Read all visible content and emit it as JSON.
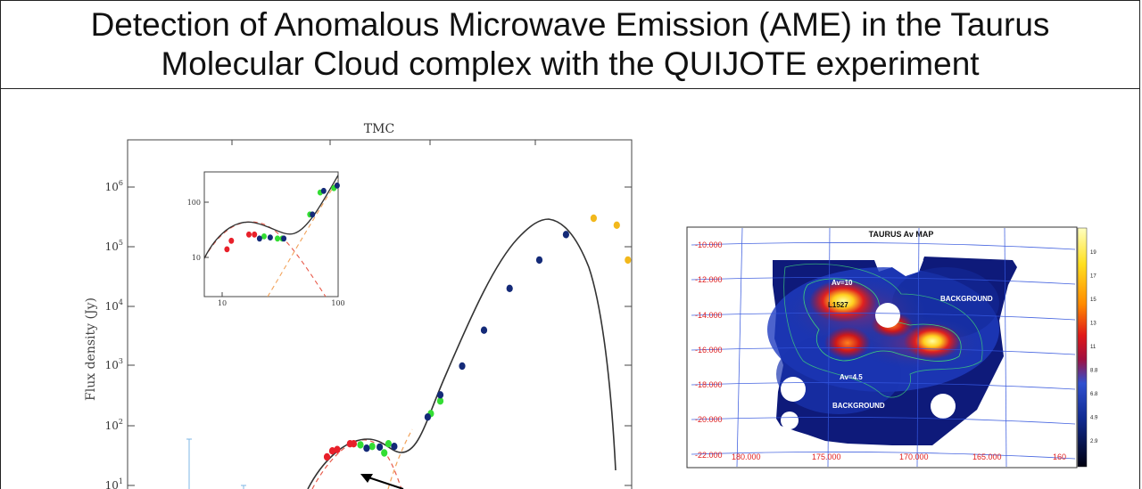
{
  "page": {
    "title_line1": "Detection of Anomalous Microwave Emission (AME) in the Taurus",
    "title_line2": "Molecular Cloud complex with the QUIJOTE experiment"
  },
  "chart_data": [
    {
      "type": "scatter",
      "title": "TMC",
      "xlabel": "",
      "ylabel": "Flux density (Jy)",
      "yscale": "log",
      "y_tick_labels": [
        "10^1",
        "10^2",
        "10^3",
        "10^4",
        "10^5",
        "10^6"
      ],
      "series": [
        {
          "color": "#e8202a",
          "points": [
            [
              11,
              30
            ],
            [
              12,
              38
            ],
            [
              13,
              40
            ],
            [
              16,
              50
            ],
            [
              17,
              50
            ]
          ]
        },
        {
          "color": "#33dd33",
          "points": [
            [
              19,
              48
            ],
            [
              23,
              45
            ],
            [
              28,
              35
            ],
            [
              30,
              50
            ],
            [
              60,
              160
            ],
            [
              70,
              260
            ]
          ]
        },
        {
          "color": "#142a78",
          "points": [
            [
              21,
              42
            ],
            [
              26,
              44
            ],
            [
              33,
              45
            ],
            [
              57,
              140
            ],
            [
              70,
              330
            ],
            [
              100,
              1000
            ],
            [
              143,
              4000
            ],
            [
              217,
              20000
            ],
            [
              353,
              60000
            ],
            [
              545,
              160000
            ]
          ]
        },
        {
          "color": "#f2b81c",
          "points": [
            [
              857,
              300000
            ],
            [
              1250,
              230000
            ],
            [
              1500,
              60000
            ]
          ]
        }
      ],
      "legend": "none",
      "grid": false
    },
    {
      "type": "scatter",
      "title": "",
      "xscale": "log",
      "yscale": "log",
      "x_tick_labels": [
        "10",
        "100"
      ],
      "y_tick_labels": [
        "10",
        "100"
      ],
      "xlim": [
        7,
        100
      ],
      "ylim": [
        3,
        200
      ],
      "series": [
        {
          "color": "#e8202a",
          "points": [
            [
              11,
              14
            ],
            [
              12,
              20
            ],
            [
              17,
              26
            ],
            [
              19,
              26
            ]
          ]
        },
        {
          "color": "#33dd33",
          "points": [
            [
              23,
              24
            ],
            [
              30,
              22
            ],
            [
              33,
              22
            ],
            [
              57,
              60
            ],
            [
              70,
              150
            ],
            [
              92,
              180
            ]
          ]
        },
        {
          "color": "#142a78",
          "points": [
            [
              21,
              22
            ],
            [
              26,
              23
            ],
            [
              34,
              22
            ],
            [
              60,
              60
            ],
            [
              75,
              160
            ],
            [
              98,
              200
            ]
          ]
        }
      ]
    },
    {
      "type": "heatmap",
      "title": "TAURUS Av MAP",
      "y_tick_labels": [
        "-10.000",
        "-12.000",
        "-14.000",
        "-16.000",
        "-18.000",
        "-20.000",
        "-22.000"
      ],
      "x_tick_labels": [
        "180.000",
        "175.000",
        "170.000",
        "165.000",
        "160"
      ],
      "colorbar_ticks": [
        "19",
        "17",
        "15",
        "13",
        "11",
        "8.8",
        "6.8",
        "4.9",
        "2.9"
      ],
      "annotations": [
        "Av=10",
        "L1527",
        "BACKGROUND",
        "Av=4.5",
        "BACKGROUND"
      ]
    }
  ]
}
